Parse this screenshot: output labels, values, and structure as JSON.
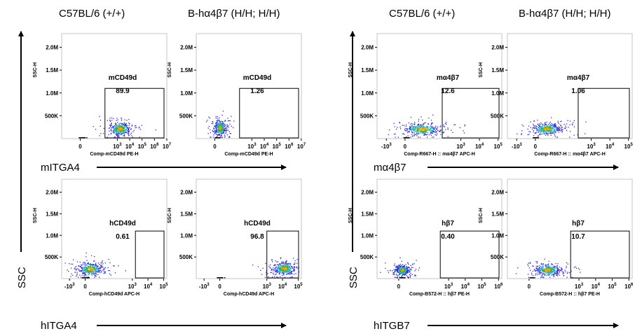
{
  "header": {
    "left_col1": "C57BL/6 (+/+)",
    "left_col2": "B-hα4β7 (H/H; H/H)",
    "right_col1": "C57BL/6 (+/+)",
    "right_col2": "B-hα4β7 (H/H; H/H)"
  },
  "side_labels": {
    "ssc_left": "SSC",
    "ssc_right": "SSC",
    "mitga4": "mITGA4",
    "hitga4": "hITGA4",
    "ma4b7": "mα4β7",
    "hitgb7": "hITGB7"
  },
  "chart_data": [
    {
      "type": "scatter",
      "panel": "C57BL/6 (+/+) mCD49d",
      "ylabel": "SSC-H",
      "xlabel": "Comp-mCD49d PE-H",
      "ytick_labels": [
        "500K",
        "1.0M",
        "1.5M",
        "2.0M"
      ],
      "yticks": [
        500000,
        1000000,
        1500000,
        2000000
      ],
      "xtick_labels": [
        "0",
        "10³",
        "10⁴",
        "10⁵",
        "10⁶",
        "10⁷"
      ],
      "xticks": [
        0,
        3,
        4,
        5,
        6,
        7
      ],
      "x_range": [
        -1.5,
        7
      ],
      "y_range": [
        0,
        2300000
      ],
      "gate": {
        "name": "mCD49d",
        "percent": "89.9",
        "x": [
          2.0,
          7.0
        ],
        "y": [
          0,
          1100000
        ]
      },
      "population": {
        "x_center": 3.2,
        "y_center": 220000,
        "x_spread": 0.65,
        "y_spread": 110000
      }
    },
    {
      "type": "scatter",
      "panel": "B-hα4β7 (H/H; H/H) mCD49d",
      "ylabel": "SSC-H",
      "xlabel": "Comp-mCD49d PE-H",
      "ytick_labels": [
        "500K",
        "1.0M",
        "1.5M",
        "2.0M"
      ],
      "yticks": [
        500000,
        1000000,
        1500000,
        2000000
      ],
      "xtick_labels": [
        "0",
        "10³",
        "10⁴",
        "10⁵",
        "10⁶",
        "10⁷"
      ],
      "xticks": [
        0,
        3,
        4,
        5,
        6,
        7
      ],
      "x_range": [
        -1.5,
        7
      ],
      "y_range": [
        0,
        2300000
      ],
      "gate": {
        "name": "mCD49d",
        "percent": "1.26",
        "x": [
          2.0,
          7.0
        ],
        "y": [
          0,
          1100000
        ]
      },
      "population": {
        "x_center": 0.4,
        "y_center": 240000,
        "x_spread": 0.35,
        "y_spread": 130000
      }
    },
    {
      "type": "scatter",
      "panel": "C57BL/6 (+/+) hCD49d",
      "ylabel": "SSC-H",
      "xlabel": "Comp-hCD49d APC-H",
      "ytick_labels": [
        "500K",
        "1.0M",
        "1.5M",
        "2.0M"
      ],
      "yticks": [
        500000,
        1000000,
        1500000,
        2000000
      ],
      "xtick_labels": [
        "-10³",
        "0",
        "10³",
        "10⁴",
        "10⁵"
      ],
      "xticks": [
        -1,
        0,
        3,
        4,
        5
      ],
      "x_range": [
        -1.5,
        5.2
      ],
      "y_range": [
        0,
        2300000
      ],
      "gate": {
        "name": "hCD49d",
        "percent": "0.61",
        "x": [
          3.2,
          5.2
        ],
        "y": [
          0,
          1100000
        ]
      },
      "population": {
        "x_center": 0.3,
        "y_center": 230000,
        "x_spread": 0.55,
        "y_spread": 120000
      }
    },
    {
      "type": "scatter",
      "panel": "B-hα4β7 (H/H; H/H) hCD49d",
      "ylabel": "SSC-H",
      "xlabel": "Comp-hCD49d APC-H",
      "ytick_labels": [
        "500K",
        "1.0M",
        "1.5M",
        "2.0M"
      ],
      "yticks": [
        500000,
        1000000,
        1500000,
        2000000
      ],
      "xtick_labels": [
        "-10³",
        "0",
        "10³",
        "10⁴",
        "10⁵"
      ],
      "xticks": [
        -1,
        0,
        3,
        4,
        5
      ],
      "x_range": [
        -1.5,
        5.2
      ],
      "y_range": [
        0,
        2300000
      ],
      "gate": {
        "name": "hCD49d",
        "percent": "96.8",
        "x": [
          3.0,
          5.2
        ],
        "y": [
          0,
          1100000
        ]
      },
      "population": {
        "x_center": 4.1,
        "y_center": 240000,
        "x_spread": 0.55,
        "y_spread": 110000
      }
    },
    {
      "type": "scatter",
      "panel": "C57BL/6 (+/+) mα4β7",
      "ylabel": "SSC-H",
      "xlabel": "Comp-R667-H :: mα4β7 APC-H",
      "ytick_labels": [
        "500K",
        "1.0M",
        "1.5M",
        "2.0M"
      ],
      "yticks": [
        500000,
        1000000,
        1500000,
        2000000
      ],
      "xtick_labels": [
        "-10³",
        "0",
        "10³",
        "10⁴",
        "10⁵"
      ],
      "xticks": [
        -1,
        0,
        3,
        4,
        5
      ],
      "x_range": [
        -1.5,
        5.2
      ],
      "y_range": [
        0,
        2300000
      ],
      "gate": {
        "name": "mα4β7",
        "percent": "12.6",
        "x": [
          2.0,
          5.2
        ],
        "y": [
          0,
          1100000
        ]
      },
      "population": {
        "x_center": 0.9,
        "y_center": 210000,
        "x_spread": 0.7,
        "y_spread": 100000
      }
    },
    {
      "type": "scatter",
      "panel": "B-hα4β7 (H/H; H/H) mα4β7",
      "ylabel": "SSC-H",
      "xlabel": "Comp-R667-H :: mα4β7 APC-H",
      "ytick_labels": [
        "500K",
        "1.0M",
        "1.5M",
        "2.0M"
      ],
      "yticks": [
        500000,
        1000000,
        1500000,
        2000000
      ],
      "xtick_labels": [
        "-10³",
        "0",
        "10³",
        "10⁴",
        "10⁵"
      ],
      "xticks": [
        -1,
        0,
        3,
        4,
        5
      ],
      "x_range": [
        -1.5,
        5.2
      ],
      "y_range": [
        0,
        2300000
      ],
      "gate": {
        "name": "mα4β7",
        "percent": "1.06",
        "x": [
          2.3,
          5.2
        ],
        "y": [
          0,
          1100000
        ]
      },
      "population": {
        "x_center": 0.6,
        "y_center": 220000,
        "x_spread": 0.55,
        "y_spread": 100000
      }
    },
    {
      "type": "scatter",
      "panel": "C57BL/6 (+/+) hβ7",
      "ylabel": "SSC-H",
      "xlabel": "Comp-B572-H :: hβ7 PE-H",
      "ytick_labels": [
        "500K",
        "1.0M",
        "1.5M",
        "2.0M"
      ],
      "yticks": [
        500000,
        1000000,
        1500000,
        2000000
      ],
      "xtick_labels": [
        "0",
        "10³",
        "10⁴",
        "10⁵",
        "10⁶"
      ],
      "xticks": [
        0,
        3,
        4,
        5,
        6
      ],
      "x_range": [
        -1.3,
        6.2
      ],
      "y_range": [
        0,
        2300000
      ],
      "gate": {
        "name": "hβ7",
        "percent": "0.40",
        "x": [
          2.5,
          6.2
        ],
        "y": [
          0,
          1100000
        ]
      },
      "population": {
        "x_center": 0.2,
        "y_center": 200000,
        "x_spread": 0.3,
        "y_spread": 90000
      }
    },
    {
      "type": "scatter",
      "panel": "B-hα4β7 (H/H; H/H) hβ7",
      "ylabel": "SSC-H",
      "xlabel": "Comp-B572-H :: hβ7 PE-H",
      "ytick_labels": [
        "500K",
        "1.0M",
        "1.5M",
        "2.0M"
      ],
      "yticks": [
        500000,
        1000000,
        1500000,
        2000000
      ],
      "xtick_labels": [
        "0",
        "10³",
        "10⁴",
        "10⁵",
        "10⁶"
      ],
      "xticks": [
        0,
        3,
        4,
        5,
        6
      ],
      "x_range": [
        -1.3,
        6.2
      ],
      "y_range": [
        0,
        2300000
      ],
      "gate": {
        "name": "hβ7",
        "percent": "10.7",
        "x": [
          2.5,
          6.2
        ],
        "y": [
          0,
          1100000
        ]
      },
      "population": {
        "x_center": 1.1,
        "y_center": 210000,
        "x_spread": 0.6,
        "y_spread": 100000
      }
    }
  ]
}
